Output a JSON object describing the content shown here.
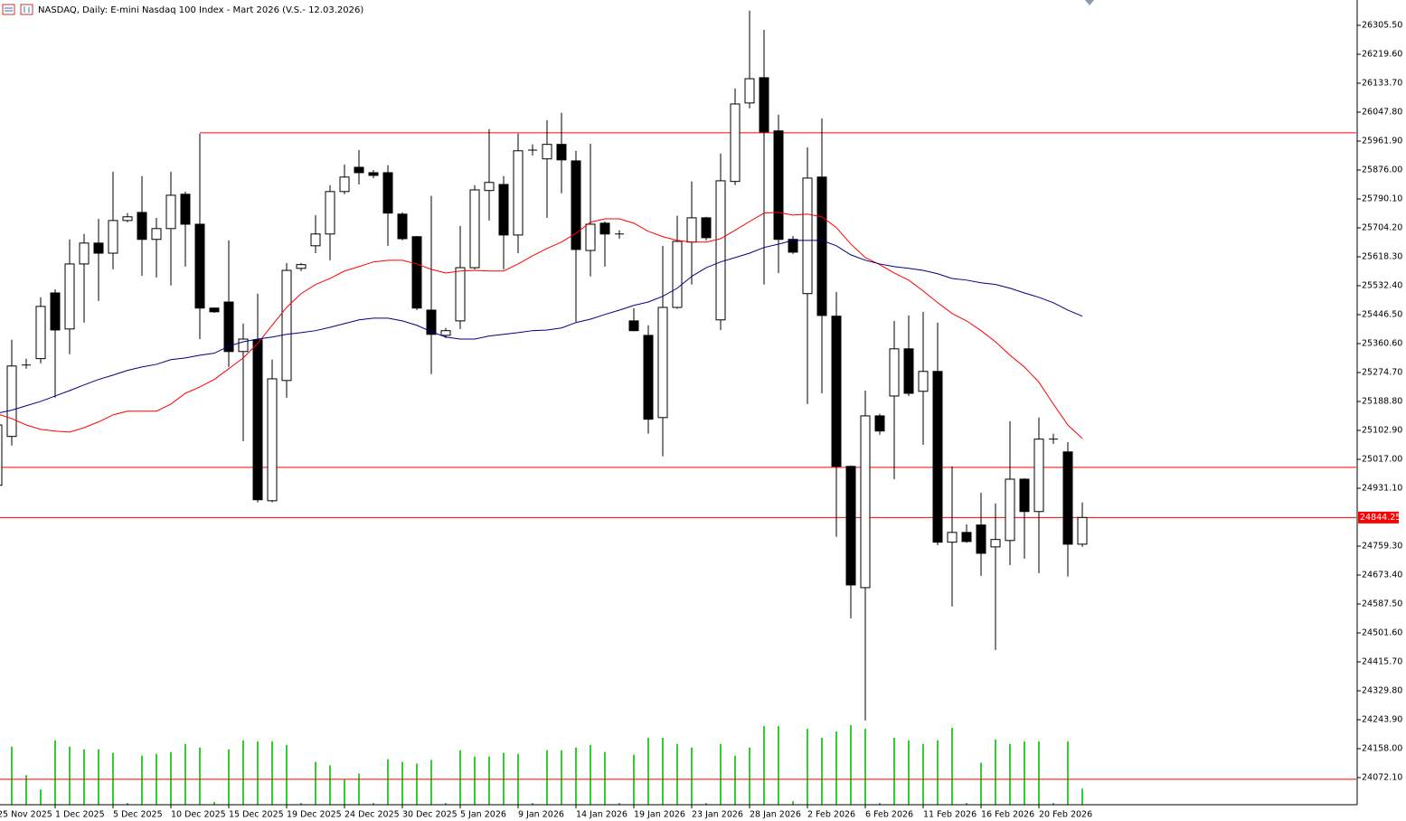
{
  "chart_data": {
    "type": "candlestick",
    "title": "NASDAQ, Daily:  E-mini Nasdaq 100 Index - Mart 2026 (V.S.- 12.03.2026)",
    "categories": [
      "25 Nov 2025",
      null,
      null,
      null,
      "1 Dec 2025",
      null,
      null,
      null,
      "5 Dec 2025",
      null,
      null,
      null,
      "10 Dec 2025",
      null,
      null,
      null,
      "15 Dec 2025",
      null,
      null,
      null,
      "19 Dec 2025",
      null,
      null,
      null,
      "24 Dec 2025",
      null,
      null,
      null,
      "30 Dec 2025",
      null,
      null,
      null,
      "5 Jan 2026",
      null,
      null,
      null,
      "9 Jan 2026",
      null,
      null,
      null,
      "14 Jan 2026",
      null,
      null,
      null,
      "19 Jan 2026",
      null,
      null,
      null,
      "23 Jan 2026",
      null,
      null,
      null,
      "28 Jan 2026",
      null,
      null,
      null,
      "2 Feb 2026",
      null,
      null,
      null,
      "6 Feb 2026",
      null,
      null,
      null,
      "11 Feb 2026",
      null,
      null,
      null,
      "16 Feb 2026",
      null,
      null,
      null,
      "20 Feb 2026",
      null,
      null,
      null
    ],
    "open": [
      24940,
      25085,
      25297,
      25316,
      25511,
      25404,
      25597,
      25659,
      25629,
      25726,
      25750,
      25670,
      25702,
      25804,
      25715,
      25466,
      25484,
      25337,
      25372,
      24894,
      25251,
      25584,
      25651,
      25686,
      25812,
      25884,
      25868,
      25868,
      25745,
      25678,
      25460,
      25385,
      25428,
      25586,
      25815,
      25833,
      25683,
      25935,
      25909,
      25952,
      25903,
      25637,
      25718,
      25686,
      25428,
      25385,
      25141,
      25468,
      25662,
      25734,
      25431,
      25842,
      26075,
      26150,
      25992,
      25670,
      25509,
      25855,
      25442,
      24996,
      24636,
      25146,
      25205,
      25345,
      25219,
      25278,
      24771,
      24800,
      24822,
      24757,
      24776,
      24958,
      24862,
      25077,
      25039,
      24765
    ],
    "high": [
      25146,
      25372,
      25316,
      25498,
      25522,
      25670,
      25686,
      25731,
      25871,
      25748,
      25858,
      25734,
      25871,
      25812,
      25984,
      25468,
      25667,
      25420,
      25509,
      25313,
      25600,
      25600,
      25742,
      25831,
      25892,
      25935,
      25876,
      25890,
      25750,
      25680,
      25799,
      25407,
      25710,
      25831,
      25997,
      25858,
      25984,
      25952,
      26024,
      26046,
      25933,
      25954,
      25723,
      25697,
      25466,
      25415,
      25651,
      25740,
      25842,
      25737,
      25925,
      26118,
      26349,
      26292,
      26040,
      25680,
      25943,
      26029,
      25514,
      24999,
      25221,
      25152,
      25428,
      25444,
      25455,
      25423,
      24996,
      24824,
      24918,
      24886,
      25130,
      24961,
      25141,
      25093,
      25068,
      24889
    ],
    "low": [
      24932,
      25058,
      25286,
      25302,
      25200,
      25329,
      25423,
      25487,
      25581,
      25721,
      25562,
      25557,
      25533,
      25589,
      25374,
      25452,
      25291,
      25071,
      24889,
      24889,
      25200,
      25576,
      25629,
      25608,
      25804,
      25833,
      25852,
      25651,
      25667,
      25460,
      25270,
      25377,
      25404,
      25581,
      25726,
      25581,
      25629,
      25919,
      25734,
      25807,
      25425,
      25560,
      25589,
      25672,
      25397,
      25093,
      25026,
      25464,
      25536,
      25667,
      25401,
      25831,
      26059,
      25536,
      25570,
      25627,
      25181,
      25213,
      24787,
      24545,
      24242,
      25090,
      24958,
      25205,
      25060,
      24762,
      24580,
      24769,
      24671,
      24451,
      24703,
      24722,
      24679,
      25063,
      24669,
      24757
    ],
    "close": [
      25119,
      25294,
      25299,
      25471,
      25401,
      25597,
      25659,
      25629,
      25726,
      25737,
      25670,
      25702,
      25801,
      25715,
      25466,
      25455,
      25337,
      25374,
      24897,
      25256,
      25578,
      25595,
      25686,
      25812,
      25855,
      25868,
      25860,
      25748,
      25672,
      25466,
      25388,
      25399,
      25586,
      25817,
      25839,
      25683,
      25933,
      25936,
      25952,
      25906,
      25640,
      25715,
      25686,
      25687,
      25399,
      25136,
      25468,
      25664,
      25734,
      25675,
      25844,
      26072,
      26147,
      25989,
      25670,
      25632,
      25852,
      25444,
      24996,
      24644,
      25146,
      25101,
      25345,
      25213,
      25278,
      24771,
      24800,
      24773,
      24738,
      24779,
      24958,
      24862,
      25077,
      25078,
      24765,
      24844.25
    ],
    "up_color": "#ffffff",
    "down_color": "#000000",
    "moving_averages": [
      {
        "color": "#ff0000",
        "values": [
          25152,
          25138,
          25119,
          25106,
          25101,
          25098,
          25111,
          25128,
          25149,
          25160,
          25160,
          25160,
          25181,
          25213,
          25232,
          25254,
          25286,
          25318,
          25361,
          25415,
          25468,
          25509,
          25536,
          25554,
          25576,
          25589,
          25603,
          25608,
          25608,
          25597,
          25581,
          25570,
          25576,
          25578,
          25576,
          25576,
          25597,
          25621,
          25643,
          25662,
          25688,
          25721,
          25731,
          25731,
          25718,
          25694,
          25678,
          25667,
          25662,
          25662,
          25672,
          25697,
          25723,
          25748,
          25750,
          25742,
          25745,
          25737,
          25705,
          25656,
          25616,
          25595,
          25570,
          25549,
          25517,
          25482,
          25450,
          25428,
          25399,
          25366,
          25326,
          25291,
          25246,
          25181,
          25119,
          25079
        ]
      },
      {
        "color": "#000080",
        "values": [
          25154,
          25163,
          25176,
          25189,
          25205,
          25221,
          25238,
          25254,
          25267,
          25281,
          25291,
          25299,
          25313,
          25318,
          25326,
          25332,
          25353,
          25366,
          25374,
          25380,
          25388,
          25393,
          25399,
          25409,
          25420,
          25431,
          25436,
          25436,
          25428,
          25415,
          25396,
          25380,
          25374,
          25374,
          25383,
          25388,
          25393,
          25399,
          25401,
          25407,
          25423,
          25433,
          25447,
          25460,
          25474,
          25484,
          25501,
          25525,
          25560,
          25586,
          25603,
          25616,
          25629,
          25646,
          25656,
          25667,
          25667,
          25667,
          25651,
          25624,
          25608,
          25597,
          25589,
          25584,
          25578,
          25568,
          25554,
          25549,
          25541,
          25536,
          25525,
          25511,
          25498,
          25482,
          25460,
          25442
        ]
      }
    ],
    "volume": [
      null,
      65,
      33,
      17,
      72,
      65,
      62,
      62,
      58,
      2,
      55,
      57,
      59,
      68,
      64,
      3,
      62,
      72,
      71,
      71,
      67,
      2,
      48,
      44,
      28,
      35,
      2,
      51,
      48,
      46,
      50,
      2,
      61,
      54,
      54,
      58,
      57,
      2,
      61,
      61,
      64,
      67,
      59,
      2,
      56,
      75,
      75,
      68,
      64,
      2,
      68,
      55,
      64,
      88,
      88,
      4,
      85,
      75,
      82,
      89,
      85,
      2,
      75,
      72,
      68,
      72,
      86,
      2,
      47,
      73,
      68,
      71,
      71,
      2,
      71,
      18
    ],
    "volume_color": "#32cd32",
    "levels": [
      25986.5,
      24993,
      24067
    ],
    "level_color": "#ff0000",
    "ylim": [
      23991.55,
      26380.66
    ],
    "yticks": [
      {
        "value": 26305.5,
        "label": "26305.50"
      },
      {
        "value": 26219.6,
        "label": "26219.60"
      },
      {
        "value": 26133.7,
        "label": "26133.70"
      },
      {
        "value": 26047.8,
        "label": "26047.80"
      },
      {
        "value": 25961.9,
        "label": "25961.90"
      },
      {
        "value": 25876,
        "label": "25876.00"
      },
      {
        "value": 25790.1,
        "label": "25790.10"
      },
      {
        "value": 25704.2,
        "label": "25704.20"
      },
      {
        "value": 25618.3,
        "label": "25618.30"
      },
      {
        "value": 25532.4,
        "label": "25532.40"
      },
      {
        "value": 25446.5,
        "label": "25446.50"
      },
      {
        "value": 25360.6,
        "label": "25360.60"
      },
      {
        "value": 25274.7,
        "label": "25274.70"
      },
      {
        "value": 25188.8,
        "label": "25188.80"
      },
      {
        "value": 25102.9,
        "label": "25102.90"
      },
      {
        "value": 25017,
        "label": "25017.00"
      },
      {
        "value": 24931.1,
        "label": "24931.10"
      },
      {
        "value": 24759.3,
        "label": "24759.30"
      },
      {
        "value": 24673.4,
        "label": "24673.40"
      },
      {
        "value": 24587.5,
        "label": "24587.50"
      },
      {
        "value": 24501.6,
        "label": "24501.60"
      },
      {
        "value": 24415.7,
        "label": "24415.70"
      },
      {
        "value": 24329.8,
        "label": "24329.80"
      },
      {
        "value": 24243.9,
        "label": "24243.90"
      },
      {
        "value": 24158,
        "label": "24158.00"
      },
      {
        "value": 24072.1,
        "label": "24072.10"
      }
    ],
    "grid": false
  }
}
